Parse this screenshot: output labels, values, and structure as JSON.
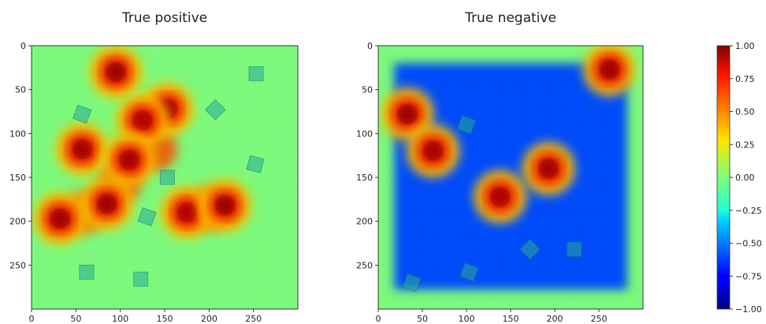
{
  "chart_data": [
    {
      "type": "heatmap",
      "title": "True positive",
      "xlim": [
        0,
        300
      ],
      "ylim": [
        300,
        0
      ],
      "xticks": [
        0,
        50,
        100,
        150,
        200,
        250
      ],
      "yticks": [
        0,
        50,
        100,
        150,
        200,
        250
      ],
      "baseline": 0.0,
      "hotspots": [
        {
          "x": 95,
          "y": 30,
          "value": 0.95
        },
        {
          "x": 153,
          "y": 72,
          "value": 0.92
        },
        {
          "x": 125,
          "y": 85,
          "value": 0.85
        },
        {
          "x": 57,
          "y": 118,
          "value": 0.92
        },
        {
          "x": 110,
          "y": 130,
          "value": 0.92
        },
        {
          "x": 85,
          "y": 180,
          "value": 0.95
        },
        {
          "x": 32,
          "y": 197,
          "value": 0.95
        },
        {
          "x": 175,
          "y": 190,
          "value": 0.85
        },
        {
          "x": 218,
          "y": 182,
          "value": 0.97
        }
      ],
      "ridges": [
        {
          "x": 140,
          "y": 118,
          "value": 0.6
        },
        {
          "x": 100,
          "y": 155,
          "value": 0.6
        },
        {
          "x": 60,
          "y": 190,
          "value": 0.55
        },
        {
          "x": 200,
          "y": 186,
          "value": 0.6
        }
      ],
      "markers": [
        {
          "x": 253,
          "y": 32,
          "angle": 0
        },
        {
          "x": 57,
          "y": 78,
          "angle": 20
        },
        {
          "x": 207,
          "y": 73,
          "angle": 45
        },
        {
          "x": 252,
          "y": 135,
          "angle": 15
        },
        {
          "x": 153,
          "y": 150,
          "angle": 0
        },
        {
          "x": 130,
          "y": 195,
          "angle": 20
        },
        {
          "x": 62,
          "y": 258,
          "angle": 0
        },
        {
          "x": 123,
          "y": 266,
          "angle": 0
        }
      ]
    },
    {
      "type": "heatmap",
      "title": "True negative",
      "xlim": [
        0,
        300
      ],
      "ylim": [
        300,
        0
      ],
      "xticks": [
        0,
        50,
        100,
        150,
        200,
        250
      ],
      "yticks": [
        0,
        50,
        100,
        150,
        200,
        250
      ],
      "baseline": 0.0,
      "cold_region": {
        "x": [
          18,
          282
        ],
        "y": [
          20,
          278
        ],
        "value": -0.6
      },
      "hotspots": [
        {
          "x": 262,
          "y": 27,
          "value": 0.95
        },
        {
          "x": 33,
          "y": 78,
          "value": 0.97
        },
        {
          "x": 62,
          "y": 120,
          "value": 0.92
        },
        {
          "x": 193,
          "y": 140,
          "value": 0.95
        },
        {
          "x": 138,
          "y": 172,
          "value": 0.9
        }
      ],
      "ridges": [
        {
          "x": 48,
          "y": 100,
          "value": 0.6
        },
        {
          "x": 165,
          "y": 155,
          "value": 0.4
        }
      ],
      "warm_clearings": [
        {
          "x": 100,
          "y": 88,
          "value": 0.0
        },
        {
          "x": 212,
          "y": 232,
          "value": 0.0
        }
      ],
      "markers": [
        {
          "x": 100,
          "y": 90,
          "angle": 20
        },
        {
          "x": 172,
          "y": 232,
          "angle": 45
        },
        {
          "x": 222,
          "y": 232,
          "angle": 0
        },
        {
          "x": 103,
          "y": 258,
          "angle": 20
        },
        {
          "x": 38,
          "y": 270,
          "angle": 20
        }
      ]
    }
  ],
  "colorbar": {
    "colormap": "jet",
    "vmin": -1.0,
    "vmax": 1.0,
    "ticks": [
      1.0,
      0.75,
      0.5,
      0.25,
      0.0,
      -0.25,
      -0.5,
      -0.75,
      -1.0
    ],
    "tick_labels": [
      "1.00",
      "0.75",
      "0.50",
      "0.25",
      "0.00",
      "−0.25",
      "−0.50",
      "−0.75",
      "−1.00"
    ]
  }
}
